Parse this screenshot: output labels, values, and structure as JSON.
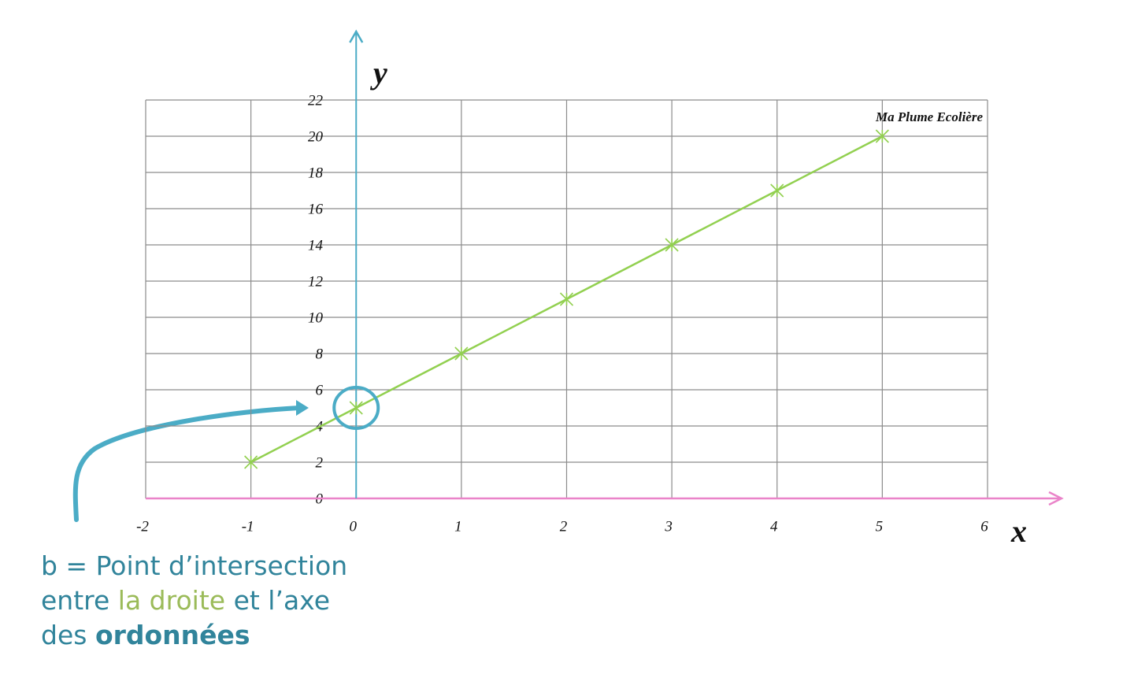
{
  "chart_data": {
    "type": "line",
    "x": [
      -1,
      0,
      1,
      2,
      3,
      4,
      5
    ],
    "series": [
      {
        "values": [
          2,
          5,
          8,
          11,
          14,
          17,
          20
        ],
        "color": "#92d050"
      }
    ],
    "xlim": [
      -2,
      6
    ],
    "xticks": [
      -2,
      -1,
      0,
      1,
      2,
      3,
      4,
      5,
      6
    ],
    "ylim": [
      0,
      22
    ],
    "yticks": [
      0,
      2,
      4,
      6,
      8,
      10,
      12,
      14,
      16,
      18,
      20,
      22
    ],
    "xlabel": "x",
    "ylabel": "y",
    "grid": true,
    "watermark": "Ma Plume Ecolière",
    "annotation": {
      "lines": [
        [
          {
            "text": "b = Point d’intersection",
            "color": "#31849b"
          }
        ],
        [
          {
            "text": "entre ",
            "color": "#31849b"
          },
          {
            "text": "la droite",
            "color": "#9bbb59"
          },
          {
            "text": " et l’axe",
            "color": "#31849b"
          }
        ],
        [
          {
            "text": "des ",
            "color": "#31849b"
          },
          {
            "text": "ordonnées",
            "color": "#31849b",
            "weight": "bold"
          }
        ]
      ]
    }
  }
}
